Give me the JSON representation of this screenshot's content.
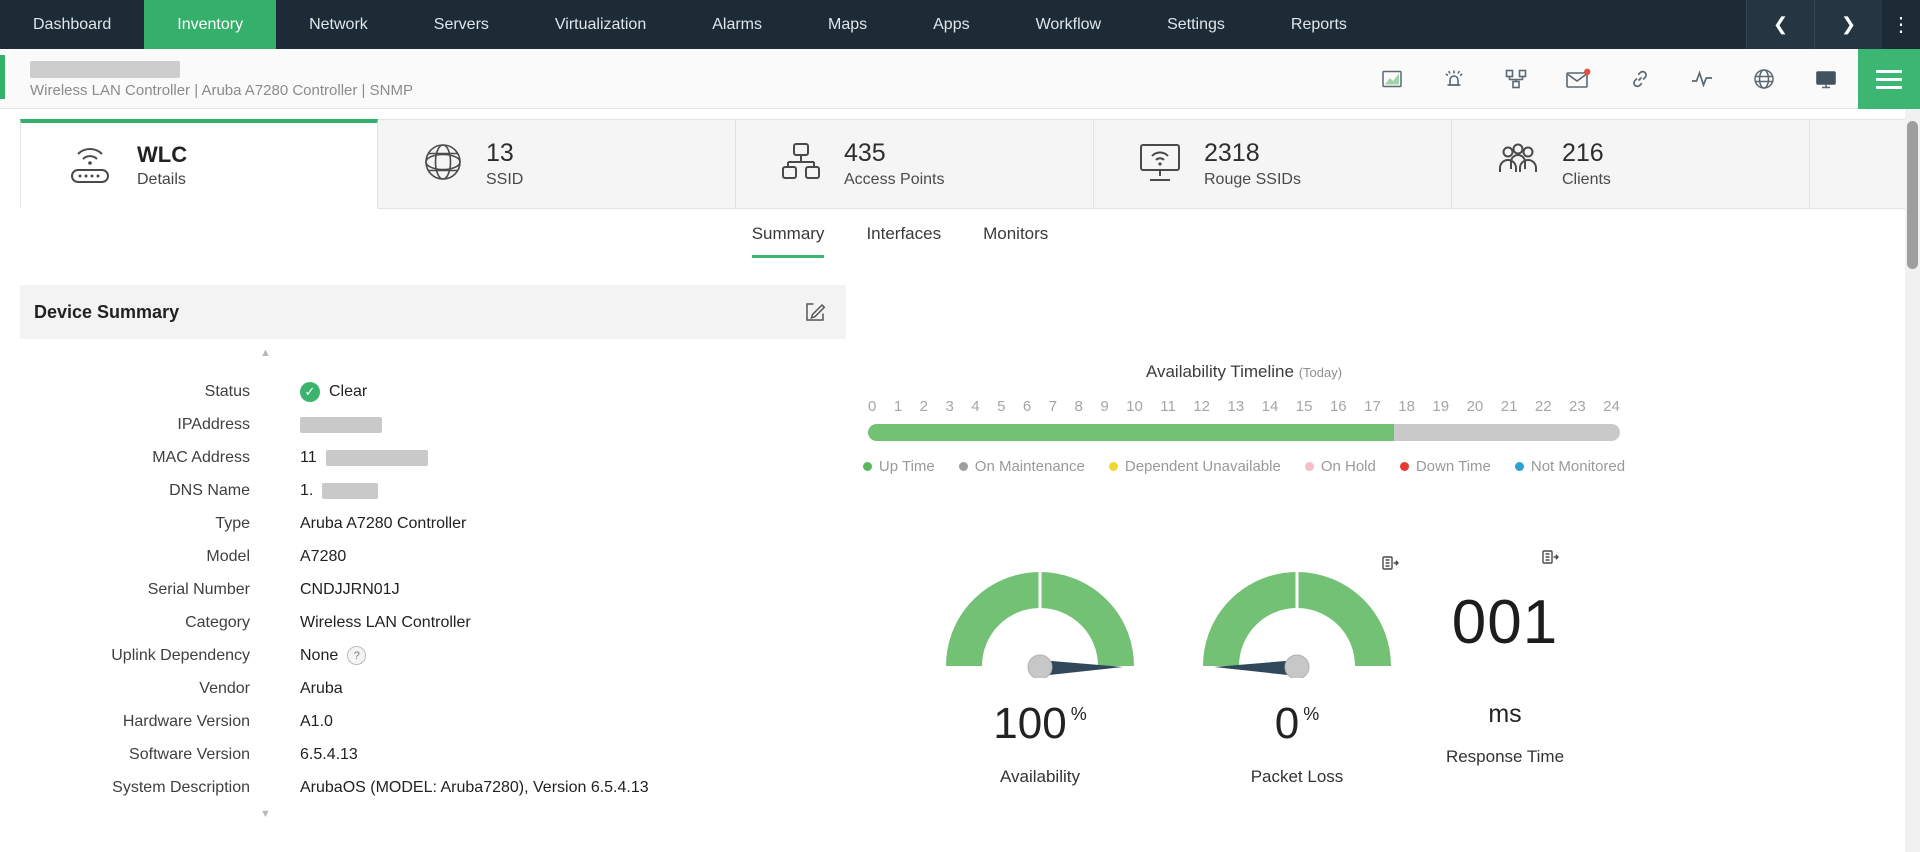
{
  "topnav": {
    "items": [
      {
        "label": "Dashboard"
      },
      {
        "label": "Inventory",
        "active": true
      },
      {
        "label": "Network"
      },
      {
        "label": "Servers"
      },
      {
        "label": "Virtualization"
      },
      {
        "label": "Alarms"
      },
      {
        "label": "Maps"
      },
      {
        "label": "Apps"
      },
      {
        "label": "Workflow"
      },
      {
        "label": "Settings"
      },
      {
        "label": "Reports"
      }
    ]
  },
  "icons": {
    "back_chevron": "❮",
    "forward_chevron": "❯",
    "kebab": "⋮",
    "scroll_up": "▲",
    "scroll_down": "▼",
    "check": "✓",
    "help": "?"
  },
  "header": {
    "breadcrumb": "Wireless LAN Controller | Aruba A7280 Controller | SNMP"
  },
  "stat_cards": [
    {
      "title": "WLC",
      "subtitle": "Details",
      "icon": "wifi-controller-icon",
      "active": true
    },
    {
      "value": "13",
      "label": "SSID",
      "icon": "globe-mesh-icon"
    },
    {
      "value": "435",
      "label": "Access Points",
      "icon": "access-point-icon"
    },
    {
      "value": "2318",
      "label": "Rouge SSIDs",
      "icon": "monitor-wifi-icon"
    },
    {
      "value": "216",
      "label": "Clients",
      "icon": "clients-icon"
    }
  ],
  "tabs": {
    "items": [
      {
        "label": "Summary",
        "active": true
      },
      {
        "label": "Interfaces"
      },
      {
        "label": "Monitors"
      }
    ]
  },
  "device_summary": {
    "title": "Device Summary",
    "fields": [
      {
        "label": "Status",
        "value": "Clear",
        "type": "status"
      },
      {
        "label": "IPAddress",
        "value": "",
        "redacted": true
      },
      {
        "label": "MAC Address",
        "value": "11",
        "redacted": true
      },
      {
        "label": "DNS Name",
        "value": "1.",
        "redacted": true
      },
      {
        "label": "Type",
        "value": "Aruba A7280 Controller"
      },
      {
        "label": "Model",
        "value": "A7280"
      },
      {
        "label": "Serial Number",
        "value": "CNDJJRN01J"
      },
      {
        "label": "Category",
        "value": "Wireless LAN Controller"
      },
      {
        "label": "Uplink Dependency",
        "value": "None",
        "help": true
      },
      {
        "label": "Vendor",
        "value": "Aruba"
      },
      {
        "label": "Hardware Version",
        "value": "A1.0"
      },
      {
        "label": "Software Version",
        "value": "6.5.4.13"
      },
      {
        "label": "System Description",
        "value": "ArubaOS (MODEL: Aruba7280), Version 6.5.4.13"
      }
    ]
  },
  "availability_timeline": {
    "title": "Availability Timeline",
    "subtitle": "(Today)",
    "hours": [
      "0",
      "1",
      "2",
      "3",
      "4",
      "5",
      "6",
      "7",
      "8",
      "9",
      "10",
      "11",
      "12",
      "13",
      "14",
      "15",
      "16",
      "17",
      "18",
      "19",
      "20",
      "21",
      "22",
      "23",
      "24"
    ],
    "up_time_percent": 70,
    "up_color": "#72c174",
    "remainder_color": "#c9c9c9",
    "legend": [
      {
        "label": "Up Time",
        "color": "#5cb85c"
      },
      {
        "label": "On Maintenance",
        "color": "#9e9e9e"
      },
      {
        "label": "Dependent Unavailable",
        "color": "#f0d832"
      },
      {
        "label": "On Hold",
        "color": "#f6bec7"
      },
      {
        "label": "Down Time",
        "color": "#e53935"
      },
      {
        "label": "Not Monitored",
        "color": "#2e9fd8"
      }
    ]
  },
  "metrics": {
    "availability": {
      "value": "100",
      "unit": "%",
      "label": "Availability",
      "percent": 100
    },
    "packet_loss": {
      "value": "0",
      "unit": "%",
      "label": "Packet Loss",
      "percent": 0
    },
    "response_time": {
      "value": "001",
      "unit": "ms",
      "label": "Response Time"
    }
  },
  "colors": {
    "accent_green": "#35b06b",
    "gauge_green": "#72c174",
    "needle": "#31475a",
    "notification_red": "#e8503a"
  }
}
